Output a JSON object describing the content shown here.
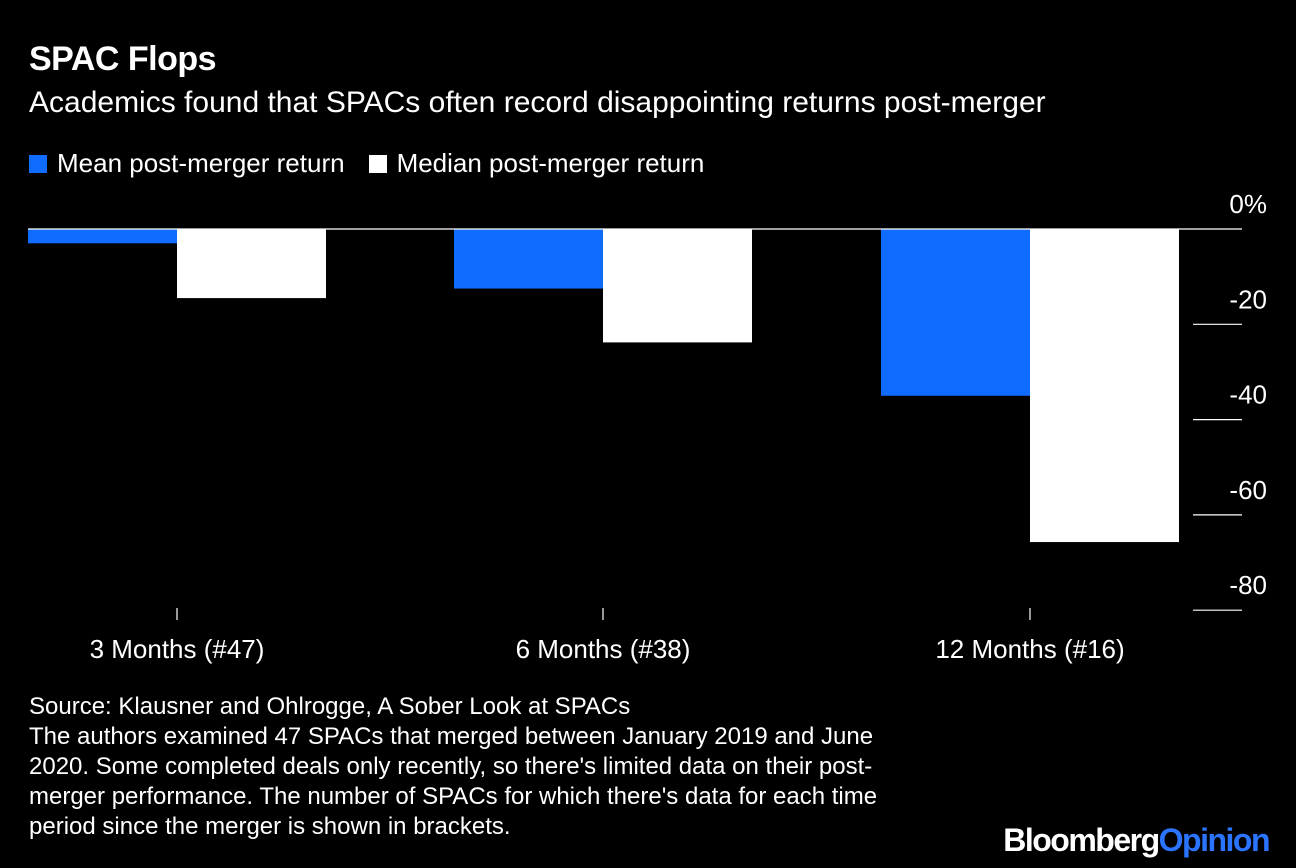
{
  "chart_data": {
    "type": "bar",
    "title": "SPAC Flops",
    "subtitle": "Academics found that SPACs often record disappointing returns post-merger",
    "categories": [
      "3 Months (#47)",
      "6 Months (#38)",
      "12 Months (#16)"
    ],
    "series": [
      {
        "name": "Mean post-merger return",
        "color": "#0f6cff",
        "values": [
          -3,
          -12.5,
          -35
        ]
      },
      {
        "name": "Median post-merger return",
        "color": "#ffffff",
        "values": [
          -14.5,
          -23.8,
          -65.7
        ]
      }
    ],
    "y_ticks": [
      {
        "value": 0,
        "label": "0%"
      },
      {
        "value": -20,
        "label": "-20"
      },
      {
        "value": -40,
        "label": "-40"
      },
      {
        "value": -60,
        "label": "-60"
      },
      {
        "value": -80,
        "label": "-80"
      }
    ],
    "ylim": [
      -80,
      0
    ],
    "xlabel": "",
    "ylabel": "",
    "legend_position": "top-left",
    "grid": false
  },
  "footer": {
    "source": "Source: Klausner and Ohlrogge, A Sober Look at SPACs",
    "note_lines": [
      "The authors examined 47 SPACs that merged between January 2019 and June",
      "2020. Some completed deals only recently, so there's limited data on their post-",
      "merger performance. The number of SPACs for which there's data for each time",
      "period since the merger is shown in brackets."
    ]
  },
  "brand": {
    "name": "Bloomberg",
    "suffix": "Opinion"
  }
}
